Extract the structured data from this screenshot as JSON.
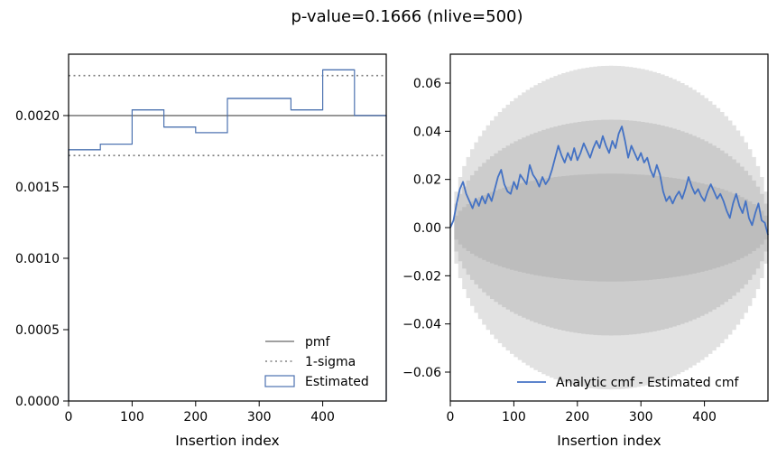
{
  "figure": {
    "title": "p-value=0.1666 (nlive=500)"
  },
  "chart_data": [
    {
      "type": "step-histogram",
      "name": "insertion-index-histogram",
      "xlabel": "Insertion index",
      "ylabel": "",
      "xlim": [
        0,
        500
      ],
      "ylim": [
        0,
        0.00243
      ],
      "xticks": [
        0,
        100,
        200,
        300,
        400
      ],
      "xtick_labels": [
        "0",
        "100",
        "200",
        "300",
        "400"
      ],
      "yticks": [
        0,
        0.0005,
        0.001,
        0.0015,
        0.002
      ],
      "ytick_labels": [
        "0.0000",
        "0.0005",
        "0.0010",
        "0.0015",
        "0.0020"
      ],
      "pmf": 0.002,
      "sigma_lines": [
        0.00228,
        0.00172
      ],
      "bin_edges": [
        0,
        50,
        100,
        150,
        200,
        250,
        300,
        350,
        400,
        450,
        500
      ],
      "estimated": [
        0.00176,
        0.0018,
        0.00204,
        0.00192,
        0.00188,
        0.00212,
        0.00212,
        0.00204,
        0.00232,
        0.002
      ],
      "legend": {
        "position": "lower-right",
        "entries": [
          "pmf",
          "1-sigma",
          "Estimated"
        ]
      },
      "colors": {
        "pmf": "#808080",
        "sigma": "#808080",
        "estimated": "#4c72b0"
      }
    },
    {
      "type": "line",
      "name": "cmf-difference",
      "xlabel": "Insertion index",
      "ylabel": "",
      "xlim": [
        0,
        500
      ],
      "ylim": [
        -0.072,
        0.072
      ],
      "xticks": [
        0,
        100,
        200,
        300,
        400
      ],
      "xtick_labels": [
        "0",
        "100",
        "200",
        "300",
        "400"
      ],
      "yticks": [
        -0.06,
        -0.04,
        -0.02,
        0,
        0.02,
        0.04,
        0.06
      ],
      "ytick_labels": [
        "−0.06",
        "−0.04",
        "−0.02",
        "0.00",
        "0.02",
        "0.04",
        "0.06"
      ],
      "bands_sigma_peak": [
        0.0224,
        0.0448,
        0.0672
      ],
      "band_colors": [
        "#bdbdbd",
        "#cccccc",
        "#e2e2e2"
      ],
      "line_color": "#4472c4",
      "series_name": "Analytic cmf - Estimated cmf",
      "legend": {
        "position": "lower-right",
        "entries": [
          "Analytic cmf - Estimated cmf"
        ]
      },
      "x": [
        0,
        5,
        10,
        15,
        20,
        25,
        30,
        35,
        40,
        45,
        50,
        55,
        60,
        65,
        70,
        75,
        80,
        85,
        90,
        95,
        100,
        105,
        110,
        115,
        120,
        125,
        130,
        135,
        140,
        145,
        150,
        155,
        160,
        165,
        170,
        175,
        180,
        185,
        190,
        195,
        200,
        205,
        210,
        215,
        220,
        225,
        230,
        235,
        240,
        245,
        250,
        255,
        260,
        265,
        270,
        275,
        280,
        285,
        290,
        295,
        300,
        305,
        310,
        315,
        320,
        325,
        330,
        335,
        340,
        345,
        350,
        355,
        360,
        365,
        370,
        375,
        380,
        385,
        390,
        395,
        400,
        405,
        410,
        415,
        420,
        425,
        430,
        435,
        440,
        445,
        450,
        455,
        460,
        465,
        470,
        475,
        480,
        485,
        490,
        495,
        500
      ],
      "y": [
        0.0,
        0.003,
        0.01,
        0.016,
        0.019,
        0.014,
        0.011,
        0.008,
        0.012,
        0.009,
        0.013,
        0.01,
        0.014,
        0.011,
        0.016,
        0.021,
        0.024,
        0.018,
        0.015,
        0.014,
        0.019,
        0.016,
        0.022,
        0.02,
        0.018,
        0.026,
        0.022,
        0.02,
        0.017,
        0.021,
        0.018,
        0.02,
        0.024,
        0.029,
        0.034,
        0.03,
        0.027,
        0.031,
        0.028,
        0.033,
        0.028,
        0.031,
        0.035,
        0.032,
        0.029,
        0.033,
        0.036,
        0.033,
        0.038,
        0.034,
        0.031,
        0.036,
        0.033,
        0.039,
        0.042,
        0.036,
        0.029,
        0.034,
        0.031,
        0.028,
        0.031,
        0.027,
        0.029,
        0.024,
        0.021,
        0.026,
        0.022,
        0.015,
        0.011,
        0.013,
        0.01,
        0.013,
        0.015,
        0.012,
        0.016,
        0.021,
        0.017,
        0.014,
        0.016,
        0.013,
        0.011,
        0.015,
        0.018,
        0.015,
        0.012,
        0.014,
        0.011,
        0.007,
        0.004,
        0.01,
        0.014,
        0.009,
        0.006,
        0.011,
        0.004,
        0.001,
        0.006,
        0.01,
        0.003,
        0.002,
        -0.003
      ]
    }
  ]
}
